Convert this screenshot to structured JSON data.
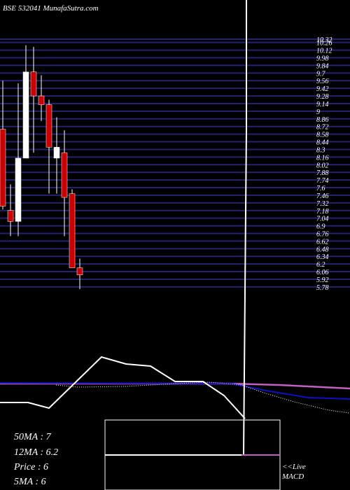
{
  "chart_data": {
    "type": "candlestick",
    "title": "BSE 532041 MunafaSutra.com",
    "categories": [
      null,
      null,
      null,
      null,
      null,
      null,
      null,
      null,
      null,
      null,
      null
    ],
    "open": [
      8.67,
      7.18,
      6.98,
      8.14,
      9.72,
      9.28,
      9.12,
      8.14,
      8.24,
      7.49,
      6.13
    ],
    "high": [
      9.56,
      7.66,
      9.51,
      10.21,
      10.18,
      9.66,
      9.21,
      8.89,
      8.65,
      7.57,
      6.3
    ],
    "low": [
      7.2,
      6.71,
      6.71,
      8.14,
      8.24,
      8.82,
      7.49,
      7.49,
      6.71,
      6.13,
      5.74
    ],
    "close": [
      7.26,
      6.98,
      8.14,
      9.72,
      9.28,
      9.12,
      8.34,
      8.34,
      7.42,
      6.13,
      6.0
    ],
    "up_color": "#ffffff",
    "down_color": "#cc0000",
    "ylim": [
      5.74,
      10.32
    ],
    "yticks": [
      10.32,
      10.26,
      10.12,
      9.98,
      9.84,
      9.7,
      9.56,
      9.42,
      9.28,
      9.14,
      9,
      8.86,
      8.72,
      8.58,
      8.44,
      8.3,
      8.16,
      8.02,
      7.88,
      7.74,
      7.6,
      7.46,
      7.32,
      7.18,
      7.04,
      6.9,
      6.76,
      6.62,
      6.48,
      6.34,
      6.2,
      6.06,
      5.92,
      5.78
    ],
    "grid": true,
    "grid_color": "#23236e",
    "annotations": [
      "50MA : 7",
      "12MA : 6.2",
      "Price   : 6",
      "5MA : 6"
    ],
    "macd_label": [
      "<<Live",
      "MACD"
    ]
  }
}
